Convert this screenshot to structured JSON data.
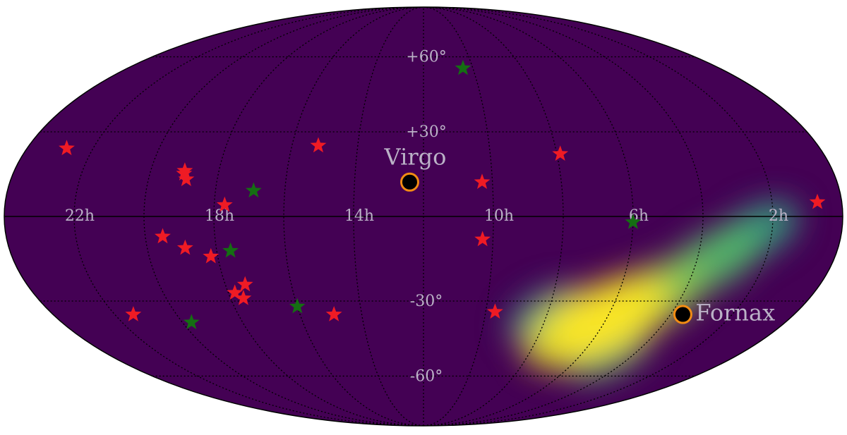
{
  "map": {
    "projection": "mollweide",
    "colors": {
      "background_fill": "#440154",
      "equator_line": "#000000",
      "graticule": "#000000",
      "label_text": "#bbb2c7",
      "star_red": "#ef1b24",
      "star_green": "#156e13",
      "target_fill": "#000000",
      "target_ring": "#f28c13"
    },
    "ra_labels": [
      {
        "text": "22h",
        "ra_hours": 22
      },
      {
        "text": "18h",
        "ra_hours": 18
      },
      {
        "text": "14h",
        "ra_hours": 14
      },
      {
        "text": "10h",
        "ra_hours": 10
      },
      {
        "text": "6h",
        "ra_hours": 6
      },
      {
        "text": "2h",
        "ra_hours": 2
      }
    ],
    "dec_labels": [
      {
        "text": "+60°",
        "dec": 60
      },
      {
        "text": "+30°",
        "dec": 30
      },
      {
        "text": "-30°",
        "dec": -30
      },
      {
        "text": "-60°",
        "dec": -60
      }
    ],
    "named_targets": [
      {
        "name": "Virgo",
        "ra_hours": 12.4,
        "dec": 12.0
      },
      {
        "name": "Fornax",
        "ra_hours": 3.6,
        "dec": -35.0
      }
    ],
    "heatmap_blobs": [
      {
        "ra_hours": 5.9,
        "dec": -36,
        "level": 1.0
      },
      {
        "ra_hours": 6.7,
        "dec": -40,
        "level": 0.95
      },
      {
        "ra_hours": 4.8,
        "dec": -28,
        "level": 0.75
      },
      {
        "ra_hours": 3.5,
        "dec": -15,
        "level": 0.6
      },
      {
        "ra_hours": 2.4,
        "dec": -5,
        "level": 0.45
      },
      {
        "ra_hours": 5.2,
        "dec": -48,
        "level": 0.55
      },
      {
        "ra_hours": 8.0,
        "dec": -35,
        "level": 0.4
      }
    ],
    "stars": [
      {
        "color": "red",
        "ra_hours": 0.7,
        "dec": 5
      },
      {
        "color": "red",
        "ra_hours": 7.9,
        "dec": 22
      },
      {
        "color": "red",
        "ra_hours": 10.3,
        "dec": 12
      },
      {
        "color": "red",
        "ra_hours": 10.3,
        "dec": -8
      },
      {
        "color": "red",
        "ra_hours": 9.7,
        "dec": -34
      },
      {
        "color": "red",
        "ra_hours": 15.2,
        "dec": 25
      },
      {
        "color": "red",
        "ra_hours": 17.7,
        "dec": 4
      },
      {
        "color": "red",
        "ra_hours": 19.0,
        "dec": 16
      },
      {
        "color": "red",
        "ra_hours": 19.0,
        "dec": 15
      },
      {
        "color": "red",
        "ra_hours": 18.9,
        "dec": 13
      },
      {
        "color": "red",
        "ra_hours": 19.5,
        "dec": -7
      },
      {
        "color": "red",
        "ra_hours": 18.9,
        "dec": -11
      },
      {
        "color": "red",
        "ra_hours": 18.2,
        "dec": -14
      },
      {
        "color": "red",
        "ra_hours": 17.4,
        "dec": -24
      },
      {
        "color": "red",
        "ra_hours": 17.8,
        "dec": -27
      },
      {
        "color": "red",
        "ra_hours": 17.6,
        "dec": -29
      },
      {
        "color": "red",
        "ra_hours": 21.4,
        "dec": -35
      },
      {
        "color": "red",
        "ra_hours": 14.9,
        "dec": -35
      },
      {
        "color": "red",
        "ra_hours": 22.8,
        "dec": 24
      },
      {
        "color": "green",
        "ra_hours": 10.4,
        "dec": 55
      },
      {
        "color": "green",
        "ra_hours": 16.9,
        "dec": 9
      },
      {
        "color": "green",
        "ra_hours": 17.6,
        "dec": -12
      },
      {
        "color": "green",
        "ra_hours": 6.0,
        "dec": -2
      },
      {
        "color": "green",
        "ra_hours": 16.0,
        "dec": -32
      },
      {
        "color": "green",
        "ra_hours": 19.7,
        "dec": -38
      }
    ]
  }
}
